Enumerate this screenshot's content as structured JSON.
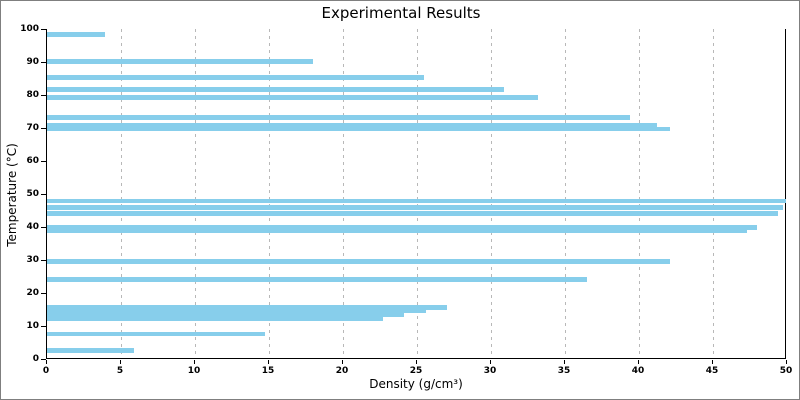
{
  "window": {
    "background": "#ffffff",
    "border_color": "#7f7f7f"
  },
  "chart_data": {
    "type": "bar",
    "orientation": "horizontal",
    "title": "Experimental Results",
    "xlabel": "Density (g/cm³)",
    "ylabel": "Temperature (°C)",
    "xlim": [
      0,
      50
    ],
    "ylim": [
      0,
      100
    ],
    "x_ticks": [
      0,
      5,
      10,
      15,
      20,
      25,
      30,
      35,
      40,
      45,
      50
    ],
    "y_ticks": [
      0,
      10,
      20,
      30,
      40,
      50,
      60,
      70,
      80,
      90,
      100
    ],
    "grid": "vertical dashed gridlines at interior x ticks",
    "legend": "none",
    "bar_color": "#87CEEB",
    "bar_thickness_units": 1.45,
    "points": [
      {
        "temperature": 98.3,
        "density": 3.9
      },
      {
        "temperature": 90.2,
        "density": 18.0
      },
      {
        "temperature": 85.2,
        "density": 25.5
      },
      {
        "temperature": 81.7,
        "density": 30.9
      },
      {
        "temperature": 79.3,
        "density": 33.2
      },
      {
        "temperature": 73.1,
        "density": 39.4
      },
      {
        "temperature": 70.8,
        "density": 41.2
      },
      {
        "temperature": 69.7,
        "density": 42.1
      },
      {
        "temperature": 47.9,
        "density": 49.9
      },
      {
        "temperature": 45.8,
        "density": 49.7
      },
      {
        "temperature": 44.0,
        "density": 49.4
      },
      {
        "temperature": 39.8,
        "density": 48.0
      },
      {
        "temperature": 38.8,
        "density": 47.3
      },
      {
        "temperature": 29.6,
        "density": 42.1
      },
      {
        "temperature": 24.0,
        "density": 36.5
      },
      {
        "temperature": 15.7,
        "density": 27.0
      },
      {
        "temperature": 14.6,
        "density": 25.6
      },
      {
        "temperature": 13.5,
        "density": 24.1
      },
      {
        "temperature": 12.1,
        "density": 22.7
      },
      {
        "temperature": 7.6,
        "density": 14.7
      },
      {
        "temperature": 2.6,
        "density": 5.9
      }
    ]
  }
}
